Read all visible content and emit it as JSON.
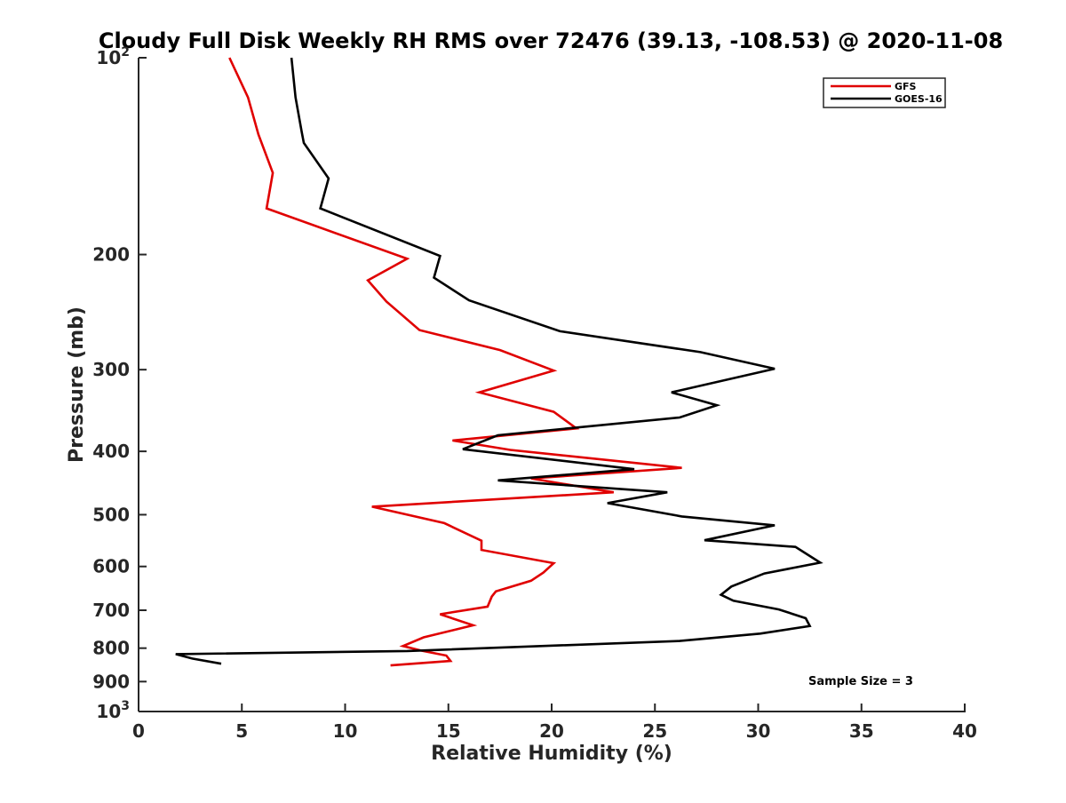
{
  "chart_data": {
    "type": "line",
    "title": "Cloudy Full Disk Weekly RH RMS over 72476 (39.13, -108.53) @ 2020-11-08",
    "xlabel": "Relative Humidity (%)",
    "ylabel": "Pressure (mb)",
    "xlim": [
      0,
      40
    ],
    "ylim": [
      100,
      1000
    ],
    "y_scale": "log",
    "y_reversed": true,
    "grid": false,
    "legend_position": "top-right",
    "x_ticks": [
      {
        "value": 0,
        "label": "0"
      },
      {
        "value": 5,
        "label": "5"
      },
      {
        "value": 10,
        "label": "10"
      },
      {
        "value": 15,
        "label": "15"
      },
      {
        "value": 20,
        "label": "20"
      },
      {
        "value": 25,
        "label": "25"
      },
      {
        "value": 30,
        "label": "30"
      },
      {
        "value": 35,
        "label": "35"
      },
      {
        "value": 40,
        "label": "40"
      }
    ],
    "y_ticks": [
      {
        "value": 100,
        "base": "10",
        "exp": "2"
      },
      {
        "value": 200,
        "label": "200"
      },
      {
        "value": 300,
        "label": "300"
      },
      {
        "value": 400,
        "label": "400"
      },
      {
        "value": 500,
        "label": "500"
      },
      {
        "value": 600,
        "label": "600"
      },
      {
        "value": 700,
        "label": "700"
      },
      {
        "value": 800,
        "label": "800"
      },
      {
        "value": 900,
        "label": "900"
      },
      {
        "value": 1000,
        "base": "10",
        "exp": "3"
      }
    ],
    "series": [
      {
        "name": "GFS",
        "color": "#e00000",
        "points": [
          [
            4.4,
            100
          ],
          [
            5.3,
            115
          ],
          [
            5.8,
            131
          ],
          [
            6.5,
            150
          ],
          [
            6.2,
            170
          ],
          [
            13.0,
            203
          ],
          [
            11.1,
            219
          ],
          [
            12.0,
            236
          ],
          [
            13.6,
            261
          ],
          [
            17.5,
            280
          ],
          [
            20.1,
            301
          ],
          [
            16.5,
            325
          ],
          [
            20.1,
            348
          ],
          [
            21.2,
            369
          ],
          [
            15.2,
            385
          ],
          [
            18.0,
            398
          ],
          [
            26.3,
            424
          ],
          [
            19.0,
            440
          ],
          [
            23.0,
            462
          ],
          [
            11.3,
            486
          ],
          [
            14.8,
            515
          ],
          [
            16.6,
            548
          ],
          [
            16.6,
            566
          ],
          [
            20.1,
            593
          ],
          [
            19.6,
            613
          ],
          [
            19.0,
            631
          ],
          [
            17.3,
            655
          ],
          [
            17.1,
            667
          ],
          [
            16.9,
            691
          ],
          [
            14.6,
            710
          ],
          [
            16.2,
            738
          ],
          [
            13.8,
            770
          ],
          [
            12.8,
            794
          ],
          [
            13.7,
            807
          ],
          [
            14.9,
            821
          ],
          [
            15.1,
            837
          ],
          [
            12.2,
            850
          ]
        ]
      },
      {
        "name": "GOES-16",
        "color": "#000000",
        "points": [
          [
            7.4,
            100
          ],
          [
            7.6,
            115
          ],
          [
            7.9,
            130
          ],
          [
            8.0,
            135
          ],
          [
            9.2,
            153
          ],
          [
            8.8,
            170
          ],
          [
            14.6,
            201
          ],
          [
            14.3,
            217
          ],
          [
            16.0,
            235
          ],
          [
            20.4,
            262
          ],
          [
            27.2,
            282
          ],
          [
            30.8,
            299
          ],
          [
            25.8,
            325
          ],
          [
            28.0,
            340
          ],
          [
            26.2,
            355
          ],
          [
            17.4,
            378
          ],
          [
            15.7,
            397
          ],
          [
            24.0,
            426
          ],
          [
            17.4,
            443
          ],
          [
            25.6,
            462
          ],
          [
            22.7,
            480
          ],
          [
            26.3,
            503
          ],
          [
            30.8,
            519
          ],
          [
            27.4,
            547
          ],
          [
            31.8,
            560
          ],
          [
            33.0,
            592
          ],
          [
            30.3,
            615
          ],
          [
            28.7,
            644
          ],
          [
            28.2,
            663
          ],
          [
            28.8,
            677
          ],
          [
            31.0,
            698
          ],
          [
            32.3,
            720
          ],
          [
            32.5,
            740
          ],
          [
            30.1,
            760
          ],
          [
            26.2,
            780
          ],
          [
            13.0,
            808
          ],
          [
            1.8,
            817
          ],
          [
            2.6,
            830
          ],
          [
            4.0,
            845
          ]
        ]
      }
    ],
    "legend": [
      {
        "label": "GFS",
        "color": "#e00000"
      },
      {
        "label": "GOES-16",
        "color": "#000000"
      }
    ],
    "annotations": [
      {
        "text": "Sample Size = 3"
      }
    ]
  }
}
